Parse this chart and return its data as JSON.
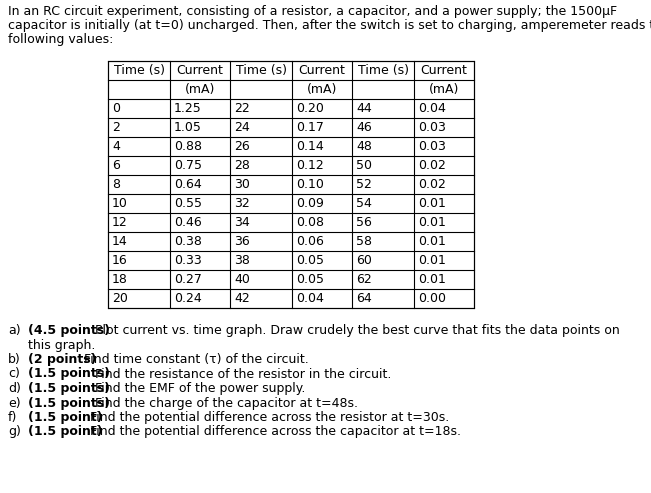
{
  "intro_line1": "In an RC circuit experiment, consisting of a resistor, a capacitor, and a power supply; the 1500μF",
  "intro_line2": "capacitor is initially (at t=0) uncharged. Then, after the switch is set to charging, amperemeter reads the",
  "intro_line3": "following values:",
  "col1_time": [
    0,
    2,
    4,
    6,
    8,
    10,
    12,
    14,
    16,
    18,
    20
  ],
  "col1_current": [
    "1.25",
    "1.05",
    "0.88",
    "0.75",
    "0.64",
    "0.55",
    "0.46",
    "0.38",
    "0.33",
    "0.27",
    "0.24"
  ],
  "col2_time": [
    22,
    24,
    26,
    28,
    30,
    32,
    34,
    36,
    38,
    40,
    42
  ],
  "col2_current": [
    "0.20",
    "0.17",
    "0.14",
    "0.12",
    "0.10",
    "0.09",
    "0.08",
    "0.06",
    "0.05",
    "0.05",
    "0.04"
  ],
  "col3_time": [
    44,
    46,
    48,
    50,
    52,
    54,
    56,
    58,
    60,
    62,
    64
  ],
  "col3_current": [
    "0.04",
    "0.03",
    "0.03",
    "0.02",
    "0.02",
    "0.01",
    "0.01",
    "0.01",
    "0.01",
    "0.01",
    "0.00"
  ],
  "q_labels": [
    "a)",
    "b)",
    "c)",
    "d)",
    "e)",
    "f)",
    "g)"
  ],
  "q_points": [
    "(4.5 points)",
    "(2 points)",
    "(1.5 points)",
    "(1.5 points)",
    "(1.5 points)",
    "(1.5 point)",
    "(1.5 point)"
  ],
  "q_texts": [
    "Plot current vs. time graph. Draw crudely the best curve that fits the data points on\n        this graph.",
    "Find time constant (τ) of the circuit.",
    "Find the resistance of the resistor in the circuit.",
    "Find the EMF of the power supply.",
    "Find the charge of the capacitor at t=48s.",
    "Find the potential difference across the resistor at t=30s.",
    "Find the potential difference across the capacitor at t=18s."
  ],
  "text_color": "#000000",
  "background_color": "#ffffff",
  "font_size": 9.0,
  "table_font_size": 9.0
}
